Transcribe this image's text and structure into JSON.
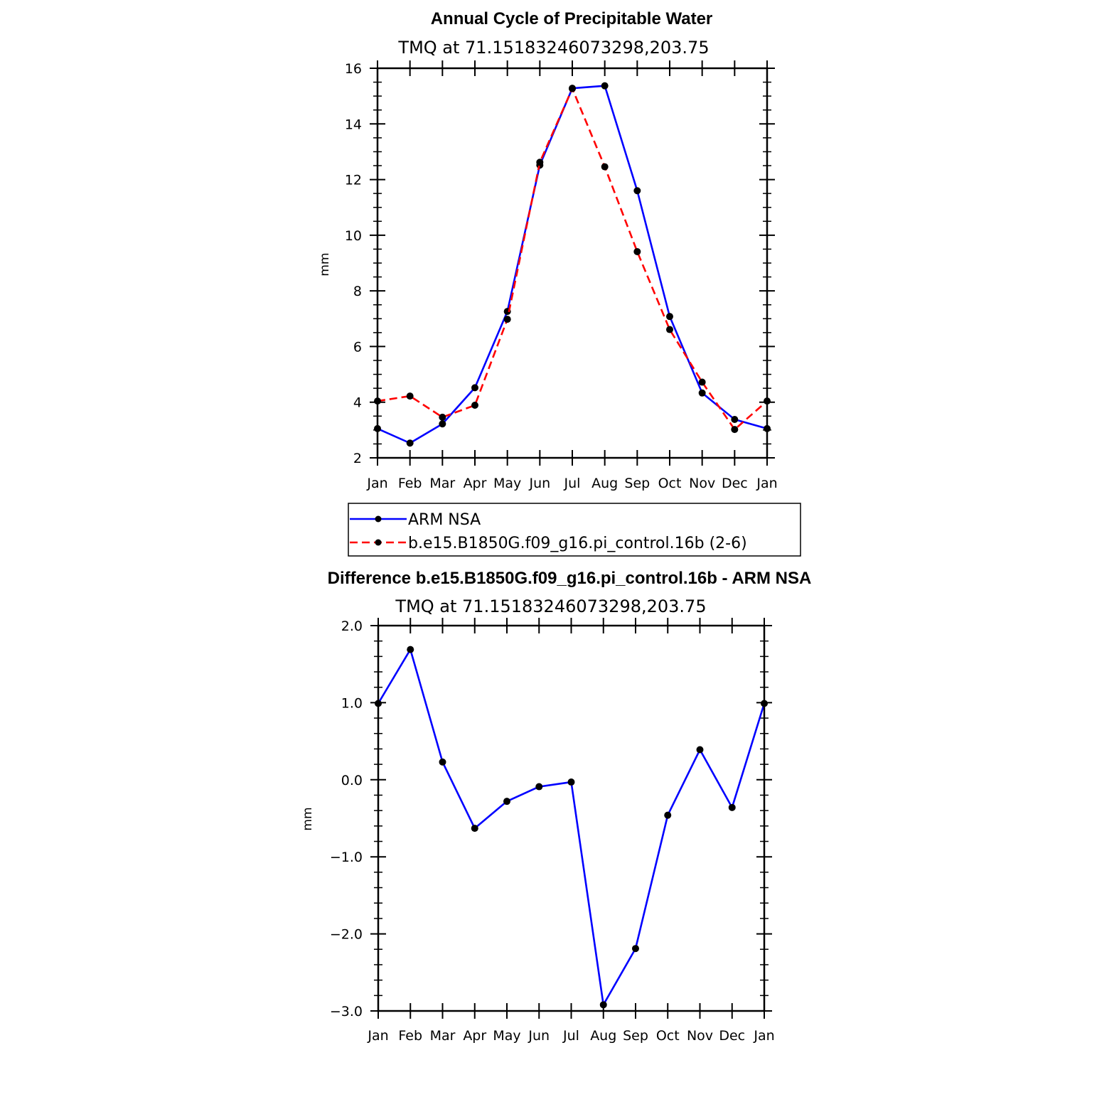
{
  "chart_data": [
    {
      "type": "line",
      "title": "Annual Cycle of Precipitable Water",
      "subtitle": "TMQ at 71.15183246073298,203.75",
      "ylabel": "mm",
      "ylim": [
        2,
        16
      ],
      "yticks": [
        2,
        4,
        6,
        8,
        10,
        12,
        14,
        16
      ],
      "ytick_labels": [
        "2",
        "4",
        "6",
        "8",
        "10",
        "12",
        "14",
        "16"
      ],
      "categories": [
        "Jan",
        "Feb",
        "Mar",
        "Apr",
        "May",
        "Jun",
        "Jul",
        "Aug",
        "Sep",
        "Oct",
        "Nov",
        "Dec",
        "Jan"
      ],
      "grid": false,
      "legend_position": "below",
      "series": [
        {
          "name": "ARM NSA",
          "color": "#0000ff",
          "line_style": "solid",
          "values": [
            3.05,
            2.53,
            3.22,
            4.52,
            7.26,
            12.52,
            15.28,
            15.37,
            11.6,
            7.08,
            4.33,
            3.38,
            3.05
          ]
        },
        {
          "name": "b.e15.B1850G.f09_g16.pi_control.16b (2-6)",
          "color": "#ff0000",
          "line_style": "dashed",
          "values": [
            4.04,
            4.22,
            3.46,
            3.89,
            6.98,
            12.62,
            15.27,
            12.46,
            9.41,
            6.61,
            4.72,
            3.02,
            4.04
          ]
        }
      ]
    },
    {
      "type": "line",
      "title": "Difference b.e15.B1850G.f09_g16.pi_control.16b - ARM NSA",
      "subtitle": "TMQ at 71.15183246073298,203.75",
      "ylabel": "mm",
      "ylim": [
        -3.0,
        2.0
      ],
      "yticks": [
        -3.0,
        -2.0,
        -1.0,
        0.0,
        1.0,
        2.0
      ],
      "ytick_labels": [
        "−3.0",
        "−2.0",
        "−1.0",
        "0.0",
        "1.0",
        "2.0"
      ],
      "categories": [
        "Jan",
        "Feb",
        "Mar",
        "Apr",
        "May",
        "Jun",
        "Jul",
        "Aug",
        "Sep",
        "Oct",
        "Nov",
        "Dec",
        "Jan"
      ],
      "grid": false,
      "series": [
        {
          "color": "#0000ff",
          "line_style": "solid",
          "values": [
            0.99,
            1.69,
            0.23,
            -0.63,
            -0.28,
            -0.09,
            -0.03,
            -2.92,
            -2.19,
            -0.46,
            0.39,
            -0.36,
            0.99
          ]
        }
      ]
    }
  ]
}
